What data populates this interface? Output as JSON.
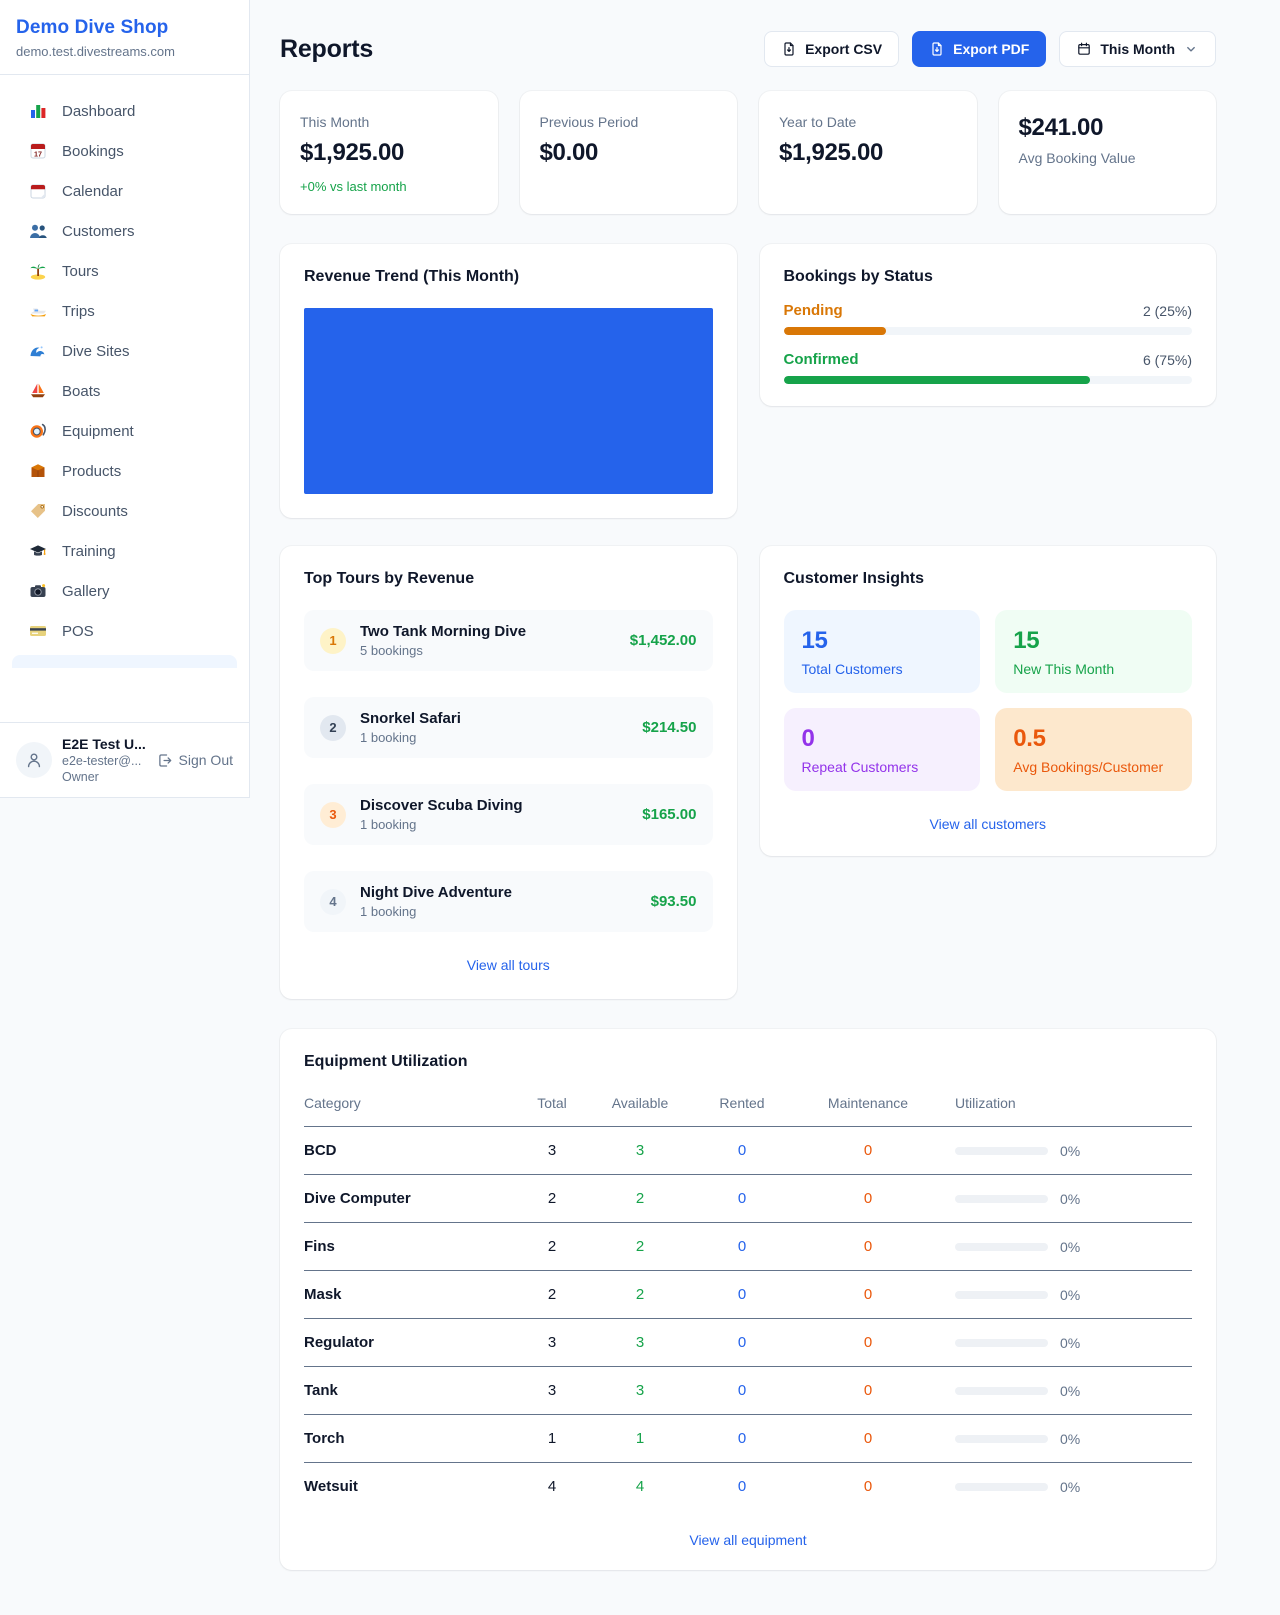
{
  "colors": {
    "accent": "#2563eb",
    "green": "#16a34a",
    "amber": "#d97706",
    "orange": "#ea580c",
    "purple": "#9333ea",
    "page_bg": "#f8fafc"
  },
  "sidebar": {
    "title": "Demo Dive Shop",
    "subdomain": "demo.test.divestreams.com",
    "items": [
      {
        "label": "Dashboard",
        "icon": "bar-chart"
      },
      {
        "label": "Bookings",
        "icon": "calendar-date"
      },
      {
        "label": "Calendar",
        "icon": "calendar-pad"
      },
      {
        "label": "Customers",
        "icon": "people"
      },
      {
        "label": "Tours",
        "icon": "island"
      },
      {
        "label": "Trips",
        "icon": "speedboat"
      },
      {
        "label": "Dive Sites",
        "icon": "wave"
      },
      {
        "label": "Boats",
        "icon": "sailboat"
      },
      {
        "label": "Equipment",
        "icon": "dive-mask"
      },
      {
        "label": "Products",
        "icon": "box"
      },
      {
        "label": "Discounts",
        "icon": "tag"
      },
      {
        "label": "Training",
        "icon": "grad-cap"
      },
      {
        "label": "Gallery",
        "icon": "camera"
      },
      {
        "label": "POS",
        "icon": "credit-card"
      }
    ],
    "user": {
      "name": "E2E Test U...",
      "email": "e2e-tester@...",
      "role": "Owner",
      "signout_label": "Sign Out"
    }
  },
  "header": {
    "title": "Reports",
    "export_csv_label": "Export CSV",
    "export_pdf_label": "Export PDF",
    "period_label": "This Month"
  },
  "stats": [
    {
      "label": "This Month",
      "value": "$1,925.00",
      "delta": "+0% vs last month"
    },
    {
      "label": "Previous Period",
      "value": "$0.00"
    },
    {
      "label": "Year to Date",
      "value": "$1,925.00"
    },
    {
      "label": "Avg Booking Value",
      "value": "$241.00",
      "value_first": true
    }
  ],
  "revenue_trend": {
    "title": "Revenue Trend (This Month)",
    "bar_color": "#2563eb"
  },
  "bookings_by_status": {
    "title": "Bookings by Status",
    "rows": [
      {
        "label": "Pending",
        "count_text": "2 (25%)",
        "pct": 25,
        "color": "#d97706"
      },
      {
        "label": "Confirmed",
        "count_text": "6 (75%)",
        "pct": 75,
        "color": "#16a34a"
      }
    ]
  },
  "top_tours": {
    "title": "Top Tours by Revenue",
    "items": [
      {
        "rank": "1",
        "theme": "gold",
        "name": "Two Tank Morning Dive",
        "bookings": "5 bookings",
        "revenue": "$1,452.00"
      },
      {
        "rank": "2",
        "theme": "silver",
        "name": "Snorkel Safari",
        "bookings": "1 booking",
        "revenue": "$214.50"
      },
      {
        "rank": "3",
        "theme": "bronze",
        "name": "Discover Scuba Diving",
        "bookings": "1 booking",
        "revenue": "$165.00"
      },
      {
        "rank": "4",
        "theme": "plain",
        "name": "Night Dive Adventure",
        "bookings": "1 booking",
        "revenue": "$93.50"
      }
    ],
    "link": "View all tours"
  },
  "customer_insights": {
    "title": "Customer Insights",
    "tiles": [
      {
        "value": "15",
        "label": "Total Customers",
        "theme": "blue"
      },
      {
        "value": "15",
        "label": "New This Month",
        "theme": "green"
      },
      {
        "value": "0",
        "label": "Repeat Customers",
        "theme": "purple"
      },
      {
        "value": "0.5",
        "label": "Avg Bookings/Customer",
        "theme": "orange"
      }
    ],
    "link": "View all customers"
  },
  "equipment": {
    "title": "Equipment Utilization",
    "columns": [
      "Category",
      "Total",
      "Available",
      "Rented",
      "Maintenance",
      "Utilization"
    ],
    "rows": [
      {
        "category": "BCD",
        "total": "3",
        "available": "3",
        "rented": "0",
        "maintenance": "0",
        "utilization": "0%"
      },
      {
        "category": "Dive Computer",
        "total": "2",
        "available": "2",
        "rented": "0",
        "maintenance": "0",
        "utilization": "0%"
      },
      {
        "category": "Fins",
        "total": "2",
        "available": "2",
        "rented": "0",
        "maintenance": "0",
        "utilization": "0%"
      },
      {
        "category": "Mask",
        "total": "2",
        "available": "2",
        "rented": "0",
        "maintenance": "0",
        "utilization": "0%"
      },
      {
        "category": "Regulator",
        "total": "3",
        "available": "3",
        "rented": "0",
        "maintenance": "0",
        "utilization": "0%"
      },
      {
        "category": "Tank",
        "total": "3",
        "available": "3",
        "rented": "0",
        "maintenance": "0",
        "utilization": "0%"
      },
      {
        "category": "Torch",
        "total": "1",
        "available": "1",
        "rented": "0",
        "maintenance": "0",
        "utilization": "0%"
      },
      {
        "category": "Wetsuit",
        "total": "4",
        "available": "4",
        "rented": "0",
        "maintenance": "0",
        "utilization": "0%"
      }
    ],
    "link": "View all equipment"
  },
  "chart_data": [
    {
      "type": "bar",
      "title": "Revenue Trend (This Month)",
      "categories": [
        "This Month"
      ],
      "values": [
        1925
      ],
      "color": "#2563eb",
      "xlabel": "",
      "ylabel": "",
      "note_layout": "single solid full-plot bar, no visible axes, ticks or labels"
    },
    {
      "type": "bar",
      "title": "Bookings by Status",
      "categories": [
        "Pending",
        "Confirmed"
      ],
      "values": [
        2,
        6
      ],
      "percents": [
        25,
        75
      ],
      "colors": [
        "#d97706",
        "#16a34a"
      ],
      "note_layout": "horizontal progress bars with count and percent labels"
    }
  ]
}
